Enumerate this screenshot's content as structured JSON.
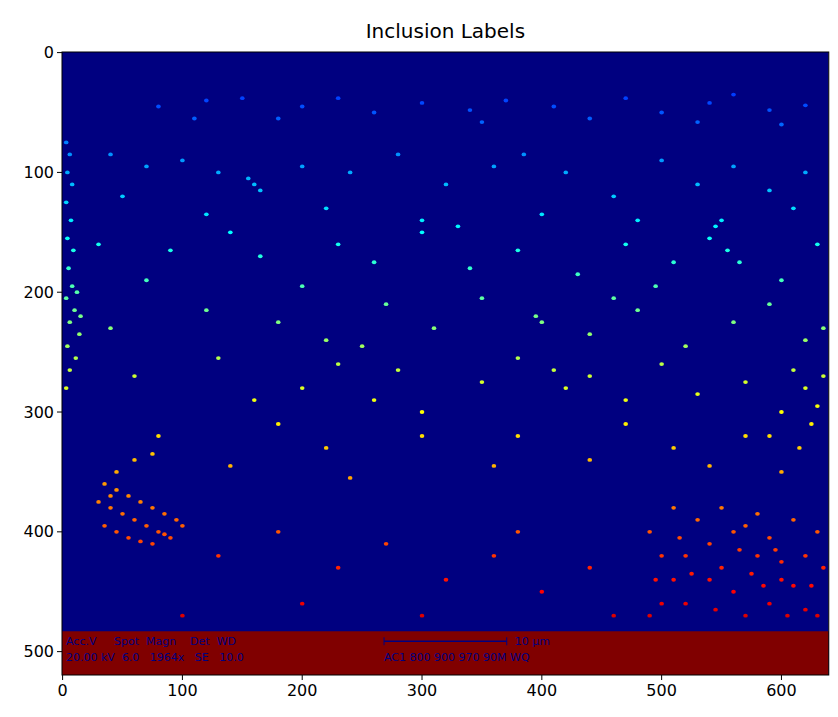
{
  "chart_data": {
    "type": "image",
    "title": "Inclusion Labels",
    "xlim": [
      -0.5,
      639.5
    ],
    "ylim": [
      519.5,
      -0.5
    ],
    "xticks": [
      0,
      100,
      200,
      300,
      400,
      500,
      600
    ],
    "yticks": [
      0,
      100,
      200,
      300,
      400,
      500
    ],
    "grid": false,
    "clim": [
      0,
      2400
    ],
    "x": [
      120,
      150,
      200,
      230,
      260,
      300,
      340,
      370,
      410,
      440,
      470,
      500,
      540,
      560,
      590,
      620,
      600,
      530,
      350,
      180,
      80,
      110,
      3,
      6,
      4,
      8,
      3,
      7,
      4,
      9,
      5,
      8,
      3,
      10,
      6,
      14,
      4,
      11,
      6,
      3,
      12,
      15,
      40,
      70,
      100,
      130,
      160,
      165,
      155,
      200,
      240,
      280,
      320,
      360,
      385,
      420,
      460,
      500,
      530,
      560,
      590,
      620,
      120,
      220,
      300,
      400,
      480,
      550,
      610,
      50,
      30,
      90,
      140,
      165,
      230,
      260,
      300,
      340,
      380,
      430,
      470,
      510,
      540,
      555,
      565,
      545,
      600,
      630,
      200,
      70,
      330,
      495,
      40,
      120,
      180,
      220,
      270,
      310,
      350,
      395,
      400,
      440,
      480,
      520,
      560,
      590,
      620,
      635,
      250,
      460,
      60,
      130,
      200,
      230,
      260,
      280,
      300,
      350,
      380,
      410,
      420,
      440,
      470,
      500,
      530,
      570,
      610,
      620,
      630,
      625,
      600,
      615,
      590,
      635,
      160,
      80,
      180,
      220,
      300,
      360,
      380,
      440,
      470,
      510,
      540,
      570,
      600,
      240,
      140,
      60,
      45,
      75,
      35,
      45,
      55,
      65,
      75,
      85,
      95,
      30,
      40,
      50,
      60,
      70,
      80,
      90,
      35,
      45,
      55,
      65,
      75,
      85,
      40,
      100,
      130,
      180,
      230,
      270,
      320,
      360,
      400,
      440,
      200,
      100,
      300,
      380,
      460,
      490,
      500,
      510,
      520,
      530,
      540,
      550,
      560,
      570,
      580,
      590,
      600,
      610,
      620,
      630,
      635,
      500,
      520,
      540,
      560,
      580,
      600,
      620,
      490,
      510,
      550,
      570,
      590,
      610,
      630,
      525,
      545,
      565,
      585,
      605,
      625,
      495,
      515,
      575,
      595
    ],
    "y": [
      40,
      38,
      45,
      38,
      50,
      42,
      48,
      40,
      45,
      55,
      38,
      50,
      42,
      35,
      48,
      44,
      60,
      58,
      58,
      55,
      45,
      55,
      75,
      85,
      100,
      110,
      125,
      140,
      155,
      165,
      180,
      195,
      205,
      215,
      225,
      235,
      245,
      255,
      265,
      280,
      200,
      220,
      85,
      95,
      90,
      100,
      110,
      115,
      105,
      95,
      100,
      85,
      110,
      95,
      85,
      100,
      120,
      90,
      110,
      95,
      115,
      100,
      135,
      130,
      140,
      135,
      140,
      140,
      130,
      120,
      160,
      165,
      150,
      170,
      160,
      175,
      150,
      180,
      165,
      185,
      160,
      175,
      155,
      165,
      175,
      145,
      190,
      160,
      195,
      190,
      145,
      195,
      230,
      215,
      225,
      240,
      210,
      230,
      205,
      220,
      225,
      235,
      215,
      245,
      225,
      210,
      240,
      230,
      245,
      205,
      270,
      255,
      280,
      260,
      290,
      265,
      300,
      275,
      255,
      265,
      280,
      270,
      290,
      260,
      285,
      275,
      265,
      280,
      295,
      310,
      300,
      330,
      320,
      270,
      290,
      320,
      310,
      330,
      320,
      345,
      320,
      340,
      310,
      330,
      345,
      320,
      350,
      355,
      345,
      340,
      350,
      335,
      360,
      365,
      370,
      375,
      380,
      385,
      390,
      375,
      380,
      385,
      390,
      395,
      400,
      405,
      395,
      400,
      405,
      408,
      410,
      402,
      370,
      395,
      420,
      400,
      430,
      410,
      440,
      420,
      450,
      430,
      460,
      470,
      470,
      400,
      470,
      400,
      420,
      440,
      460,
      390,
      410,
      430,
      450,
      470,
      385,
      405,
      425,
      445,
      465,
      400,
      430,
      460,
      420,
      440,
      400,
      420,
      440,
      420,
      470,
      380,
      380,
      395,
      460,
      390,
      470,
      435,
      465,
      415,
      445,
      470,
      445,
      440,
      405,
      435,
      415
    ],
    "labels": [
      460,
      452,
      480,
      452,
      500,
      468,
      492,
      460,
      480,
      520,
      452,
      500,
      468,
      440,
      492,
      476,
      540,
      532,
      532,
      520,
      480,
      520,
      600,
      640,
      700,
      740,
      800,
      860,
      920,
      960,
      1020,
      1080,
      1120,
      1160,
      1200,
      1240,
      1280,
      1320,
      1360,
      1420,
      1100,
      1180,
      640,
      680,
      660,
      700,
      740,
      760,
      720,
      680,
      700,
      640,
      740,
      680,
      640,
      700,
      780,
      660,
      740,
      680,
      760,
      700,
      840,
      820,
      860,
      840,
      860,
      860,
      820,
      780,
      940,
      960,
      900,
      980,
      940,
      1000,
      900,
      1020,
      960,
      1040,
      940,
      1000,
      920,
      960,
      1000,
      880,
      1060,
      940,
      1080,
      1060,
      880,
      1080,
      1220,
      1160,
      1200,
      1260,
      1140,
      1220,
      1120,
      1180,
      1200,
      1240,
      1160,
      1280,
      1200,
      1140,
      1260,
      1220,
      1280,
      1120,
      1380,
      1320,
      1420,
      1340,
      1460,
      1360,
      1500,
      1400,
      1320,
      1360,
      1420,
      1380,
      1460,
      1340,
      1440,
      1400,
      1360,
      1420,
      1480,
      1540,
      1500,
      1620,
      1580,
      1380,
      1460,
      1580,
      1540,
      1620,
      1580,
      1680,
      1580,
      1660,
      1540,
      1620,
      1680,
      1580,
      1700,
      1720,
      1680,
      1660,
      1700,
      1640,
      1740,
      1760,
      1780,
      1800,
      1820,
      1840,
      1860,
      1800,
      1820,
      1840,
      1860,
      1880,
      1900,
      1920,
      1880,
      1900,
      1920,
      1932,
      1940,
      1908,
      1780,
      1880,
      1980,
      1900,
      2020,
      1940,
      2060,
      1980,
      2100,
      2020,
      2140,
      2180,
      2180,
      1900,
      2180,
      1900,
      1980,
      2060,
      2140,
      1860,
      1940,
      2020,
      2100,
      2180,
      1840,
      1920,
      2000,
      2080,
      2160,
      1900,
      2020,
      2140,
      1980,
      2060,
      1900,
      1980,
      2060,
      1980,
      2180,
      1820,
      1820,
      1880,
      2140,
      1860,
      2180,
      2040,
      2160,
      1960,
      2080,
      2180,
      2080,
      2060,
      1920,
      2040,
      1960
    ],
    "banner": {
      "x": [
        -0.5,
        639.5
      ],
      "y": [
        483,
        519.5
      ],
      "label": 2400,
      "texts": [
        "Acc.V     Spot  Magn    Det  WD",
        "20.00 kV  6.0   1964x   SE   10.0",
        "10 μm",
        "AC1 800 900 970 90M WQ"
      ]
    }
  }
}
